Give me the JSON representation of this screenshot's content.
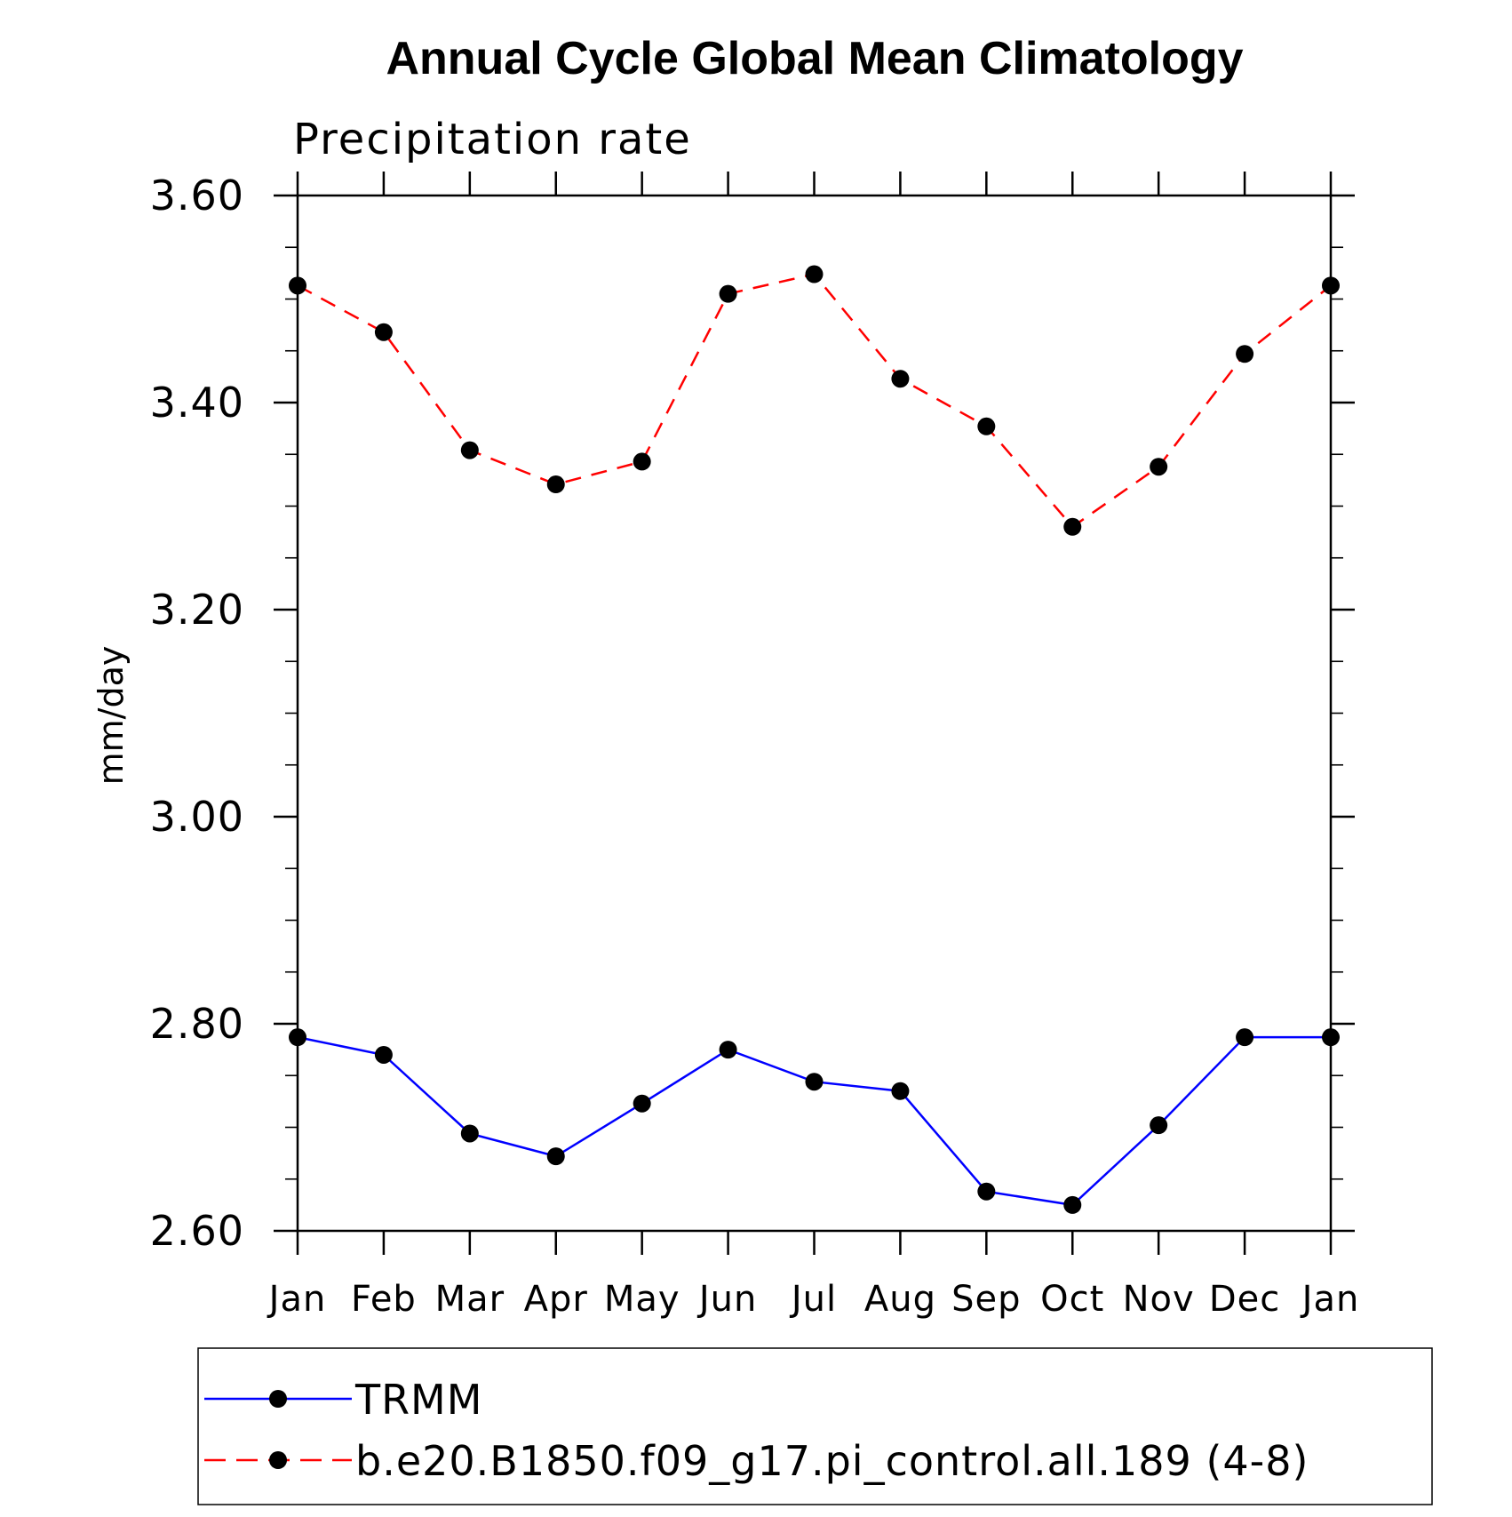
{
  "chart_data": {
    "type": "line",
    "title": "Annual Cycle Global Mean Climatology",
    "subtitle": "Precipitation rate",
    "xlabel": "",
    "ylabel": "mm/day",
    "categories": [
      "Jan",
      "Feb",
      "Mar",
      "Apr",
      "May",
      "Jun",
      "Jul",
      "Aug",
      "Sep",
      "Oct",
      "Nov",
      "Dec",
      "Jan"
    ],
    "ylim": [
      2.6,
      3.6
    ],
    "yticks": [
      "2.60",
      "2.80",
      "3.00",
      "3.20",
      "3.40",
      "3.60"
    ],
    "y_minor_step": 0.05,
    "grid": false,
    "legend_position": "bottom",
    "series": [
      {
        "name": "TRMM",
        "color": "#0000ff",
        "dash": "solid",
        "marker": "filled-circle",
        "values": [
          2.787,
          2.77,
          2.694,
          2.672,
          2.723,
          2.775,
          2.744,
          2.735,
          2.638,
          2.625,
          2.702,
          2.787,
          2.787
        ]
      },
      {
        "name": "b.e20.B1850.f09_g17.pi_control.all.189 (4-8)",
        "color": "#ff0000",
        "dash": "dashed",
        "marker": "filled-circle",
        "values": [
          3.513,
          3.468,
          3.354,
          3.321,
          3.343,
          3.505,
          3.524,
          3.423,
          3.377,
          3.28,
          3.338,
          3.447,
          3.513
        ]
      }
    ]
  }
}
